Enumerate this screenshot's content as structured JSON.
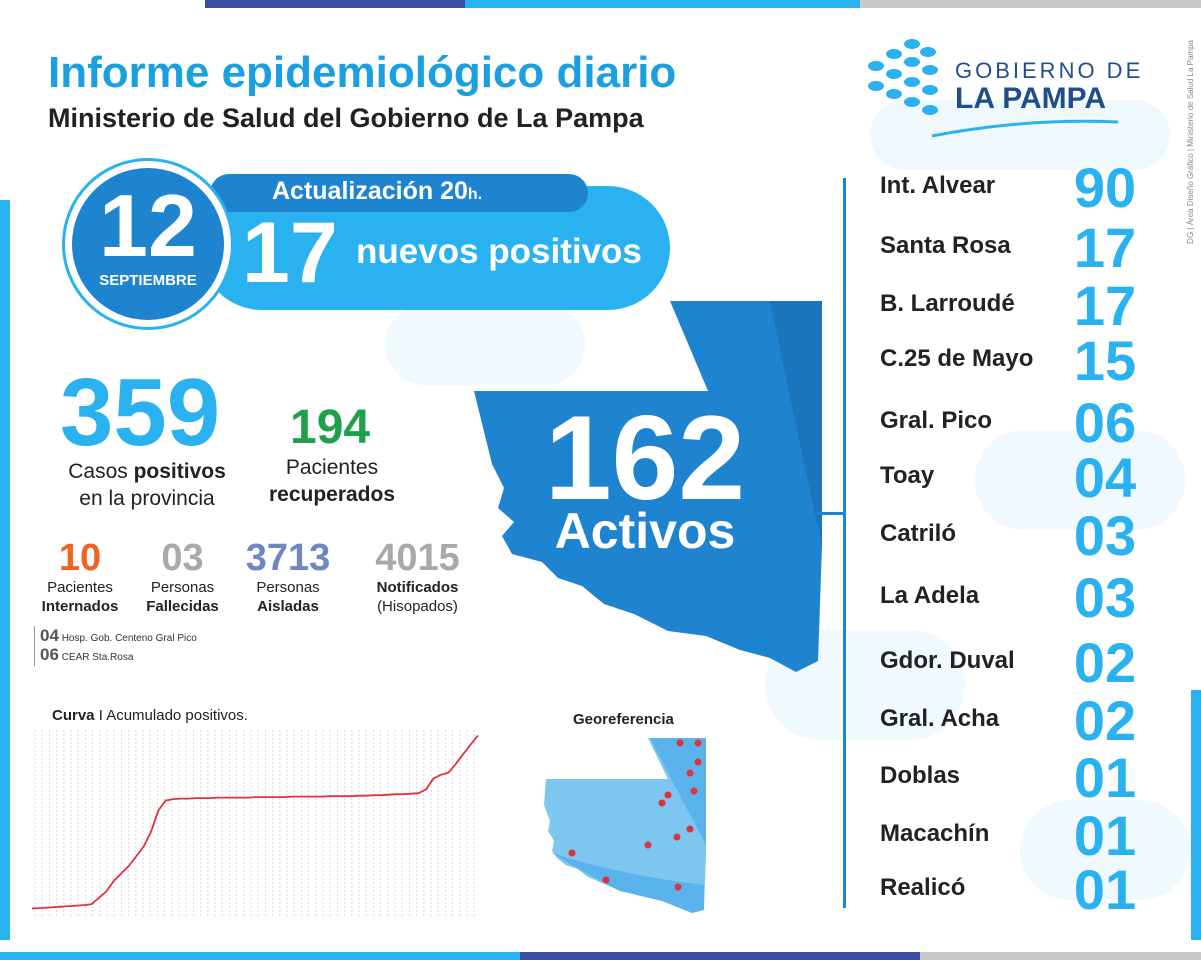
{
  "header": {
    "title": "Informe epidemiológico diario",
    "subtitle": "Ministerio de Salud del Gobierno de La Pampa",
    "logo_line1": "GOBIERNO DE",
    "logo_line2": "LA PAMPA",
    "side_credit": "DG | Área Diseño Gráfico | Ministerio de Salud La Pampa"
  },
  "date": {
    "day": "12",
    "month": "SEPTIEMBRE"
  },
  "update": {
    "label": "Actualización 20",
    "suffix": "h."
  },
  "new_cases": {
    "number": "17",
    "label": "nuevos positivos"
  },
  "total": {
    "number": "359",
    "label_prefix": "Casos ",
    "label_bold": "positivos",
    "label_line2": "en la provincia"
  },
  "recovered": {
    "number": "194",
    "label_line1": "Pacientes",
    "label_bold": "recuperados"
  },
  "stats": [
    {
      "number": "10",
      "line1": "Pacientes",
      "line2": "Internados",
      "color": "#f06423"
    },
    {
      "number": "03",
      "line1": "Personas",
      "line2": "Fallecidas",
      "color": "#a7a9ac"
    },
    {
      "number": "3713",
      "line1": "Personas",
      "line2": "Aisladas",
      "color": "#6c87c3"
    },
    {
      "number": "4015",
      "line1": "Notificados",
      "line2": "(Hisopados)",
      "color": "#a7a9ac"
    }
  ],
  "hospitals": [
    {
      "number": "04",
      "name": "Hosp. Gob. Centeno Gral Pico"
    },
    {
      "number": "06",
      "name": "CEAR Sta.Rosa"
    }
  ],
  "active": {
    "number": "162",
    "label": "Activos"
  },
  "curve": {
    "title_bold": "Curva",
    "title_rest": " I Acumulado positivos."
  },
  "geo": {
    "title": "Georeferencia"
  },
  "localities": [
    {
      "name": "Int. Alvear",
      "count": "90"
    },
    {
      "name": "Santa Rosa",
      "count": "17"
    },
    {
      "name": "B. Larroudé",
      "count": "17"
    },
    {
      "name": "C.25 de Mayo",
      "count": "15"
    },
    {
      "name": "Gral. Pico",
      "count": "06"
    },
    {
      "name": "Toay",
      "count": "04"
    },
    {
      "name": "Catriló",
      "count": "03"
    },
    {
      "name": "La Adela",
      "count": "03"
    },
    {
      "name": "Gdor. Duval",
      "count": "02"
    },
    {
      "name": "Gral. Acha",
      "count": "02"
    },
    {
      "name": "Doblas",
      "count": "01"
    },
    {
      "name": "Macachín",
      "count": "01"
    },
    {
      "name": "Realicó",
      "count": "01"
    }
  ],
  "chart_data": {
    "type": "line",
    "title": "Curva I Acumulado positivos.",
    "xlabel": "",
    "ylabel": "",
    "grid": true,
    "values": [
      3,
      4,
      5,
      6,
      7,
      8,
      9,
      10,
      12,
      25,
      38,
      60,
      75,
      90,
      110,
      130,
      160,
      205,
      225,
      228,
      229,
      229,
      230,
      230,
      230,
      231,
      231,
      231,
      231,
      231,
      232,
      232,
      232,
      232,
      232,
      233,
      233,
      233,
      233,
      233,
      234,
      234,
      234,
      234,
      235,
      235,
      236,
      236,
      237,
      238,
      238,
      239,
      240,
      248,
      270,
      278,
      282,
      300,
      320,
      340,
      359
    ],
    "ylim": [
      0,
      370
    ]
  }
}
